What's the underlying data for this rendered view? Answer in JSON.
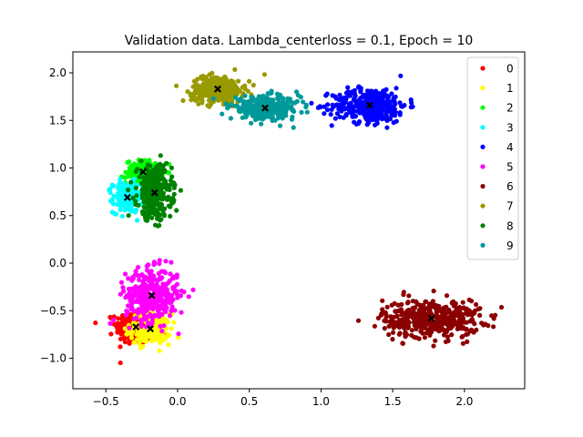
{
  "chart_data": {
    "type": "scatter",
    "title": "Validation data. Lambda_centerloss = 0.1, Epoch = 10",
    "xlabel": "",
    "ylabel": "",
    "xlim": [
      -0.73,
      2.42
    ],
    "ylim": [
      -1.32,
      2.22
    ],
    "xticks": [
      -0.5,
      0.0,
      0.5,
      1.0,
      1.5,
      2.0
    ],
    "xtick_labels": [
      "−0.5",
      "0.0",
      "0.5",
      "1.0",
      "1.5",
      "2.0"
    ],
    "yticks": [
      -1.0,
      -0.5,
      0.0,
      0.5,
      1.0,
      1.5,
      2.0
    ],
    "ytick_labels": [
      "−1.0",
      "−0.5",
      "0.0",
      "0.5",
      "1.0",
      "1.5",
      "2.0"
    ],
    "grid": false,
    "legend_position": "top-right",
    "center_marker": "x",
    "center_color": "#000000",
    "series": [
      {
        "name": "0",
        "color": "#ff0000",
        "center": [
          -0.29,
          -0.67
        ],
        "spread": [
          0.07,
          0.09
        ],
        "count": 260
      },
      {
        "name": "1",
        "color": "#ffff00",
        "center": [
          -0.19,
          -0.69
        ],
        "spread": [
          0.07,
          0.08
        ],
        "count": 220
      },
      {
        "name": "2",
        "color": "#00ff00",
        "center": [
          -0.24,
          0.96
        ],
        "spread": [
          0.06,
          0.06
        ],
        "count": 160
      },
      {
        "name": "3",
        "color": "#00ffff",
        "center": [
          -0.35,
          0.69
        ],
        "spread": [
          0.05,
          0.08
        ],
        "count": 200
      },
      {
        "name": "4",
        "color": "#0000ff",
        "center": [
          1.34,
          1.66
        ],
        "spread": [
          0.13,
          0.09
        ],
        "count": 380
      },
      {
        "name": "5",
        "color": "#ff00ff",
        "center": [
          -0.18,
          -0.34
        ],
        "spread": [
          0.09,
          0.14
        ],
        "count": 360
      },
      {
        "name": "6",
        "color": "#8b0000",
        "center": [
          1.77,
          -0.58
        ],
        "spread": [
          0.17,
          0.1
        ],
        "count": 420
      },
      {
        "name": "7",
        "color": "#999900",
        "center": [
          0.28,
          1.83
        ],
        "spread": [
          0.09,
          0.07
        ],
        "count": 330
      },
      {
        "name": "8",
        "color": "#008000",
        "center": [
          -0.16,
          0.74
        ],
        "spread": [
          0.06,
          0.14
        ],
        "count": 330
      },
      {
        "name": "9",
        "color": "#009999",
        "center": [
          0.61,
          1.63
        ],
        "spread": [
          0.12,
          0.06
        ],
        "count": 330
      }
    ]
  }
}
